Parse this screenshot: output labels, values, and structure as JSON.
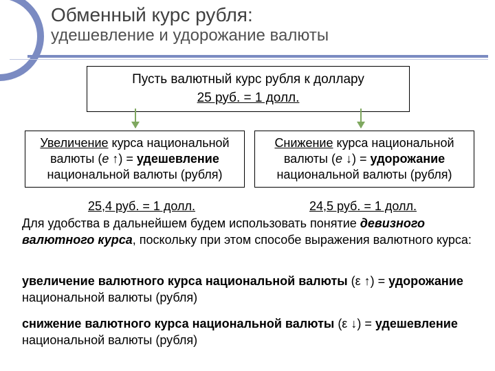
{
  "colors": {
    "accent": "#7b8bc2",
    "arrow": "#7fa860",
    "text": "#000000",
    "header_text": "#404040",
    "background": "#ffffff"
  },
  "header": {
    "title": "Обменный курс рубля:",
    "subtitle": "удешевление и удорожание валюты"
  },
  "top_box": {
    "line1": "Пусть валютный курс рубля к доллару",
    "line2": "25 руб. = 1 долл."
  },
  "branches": {
    "left": {
      "word1": "Увеличение",
      "text1": " курса национальной валюты (",
      "var": "е",
      "arrow": " ↑) = ",
      "word2": "удешевление",
      "text2": " национальной валюты (рубля)",
      "example": "25,4 руб. = 1 долл."
    },
    "right": {
      "word1": "Снижение",
      "text1": "  курса национальной валюты (",
      "var": "е",
      "arrow": " ↓) = ",
      "word2": "удорожание",
      "text2": " национальной валюты (рубля)",
      "example": "24,5 руб. = 1 долл."
    }
  },
  "para1": {
    "t1": "Для удобства в дальнейшем будем использовать понятие ",
    "em": "девизного валютного курса",
    "t2": ", поскольку при этом способе выражения валютного курса:"
  },
  "para2": {
    "b1": "увеличение валютного курса национальной валюты",
    "t1": " (ε ↑) = ",
    "b2": "удорожание",
    "t2": " национальной валюты (рубля)"
  },
  "para3": {
    "b1": "снижение валютного курса национальной валюты",
    "t1": " (ε ↓) = ",
    "b2": "удешевление",
    "t2": " национальной валюты (рубля)"
  }
}
